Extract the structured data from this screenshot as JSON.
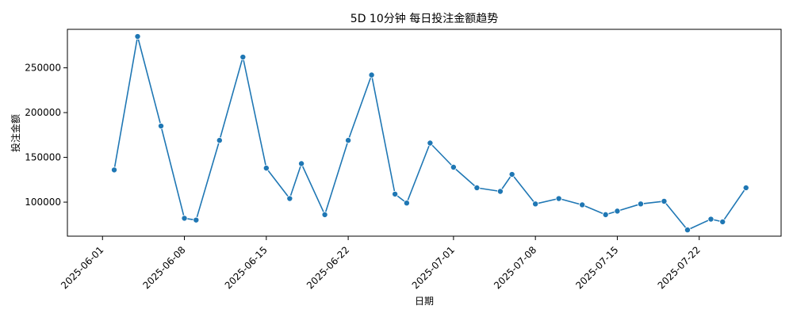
{
  "chart_data": {
    "type": "line",
    "title": "5D 10分钟 每日投注金额趋势",
    "xlabel": "日期",
    "ylabel": "投注金额",
    "xlim": [
      "2025-05-29",
      "2025-07-29"
    ],
    "ylim": [
      62000,
      293000
    ],
    "x_ticks": [
      "2025-06-01",
      "2025-06-08",
      "2025-06-15",
      "2025-06-22",
      "2025-07-01",
      "2025-07-08",
      "2025-07-15",
      "2025-07-22"
    ],
    "y_ticks": [
      100000,
      150000,
      200000,
      250000
    ],
    "grid": false,
    "legend": "none",
    "series": [
      {
        "color": "#1f77b4",
        "marker": "circle",
        "points": [
          {
            "x": "2025-06-02",
            "y": 136000
          },
          {
            "x": "2025-06-04",
            "y": 285000
          },
          {
            "x": "2025-06-06",
            "y": 185000
          },
          {
            "x": "2025-06-08",
            "y": 82000
          },
          {
            "x": "2025-06-09",
            "y": 80000
          },
          {
            "x": "2025-06-11",
            "y": 169000
          },
          {
            "x": "2025-06-13",
            "y": 262000
          },
          {
            "x": "2025-06-15",
            "y": 138000
          },
          {
            "x": "2025-06-17",
            "y": 104000
          },
          {
            "x": "2025-06-18",
            "y": 143000
          },
          {
            "x": "2025-06-20",
            "y": 86000
          },
          {
            "x": "2025-06-22",
            "y": 169000
          },
          {
            "x": "2025-06-24",
            "y": 242000
          },
          {
            "x": "2025-06-26",
            "y": 109000
          },
          {
            "x": "2025-06-27",
            "y": 99000
          },
          {
            "x": "2025-06-29",
            "y": 166000
          },
          {
            "x": "2025-07-01",
            "y": 139000
          },
          {
            "x": "2025-07-03",
            "y": 116000
          },
          {
            "x": "2025-07-05",
            "y": 112000
          },
          {
            "x": "2025-07-06",
            "y": 131000
          },
          {
            "x": "2025-07-08",
            "y": 98000
          },
          {
            "x": "2025-07-10",
            "y": 104000
          },
          {
            "x": "2025-07-12",
            "y": 97000
          },
          {
            "x": "2025-07-14",
            "y": 86000
          },
          {
            "x": "2025-07-15",
            "y": 90000
          },
          {
            "x": "2025-07-17",
            "y": 98000
          },
          {
            "x": "2025-07-19",
            "y": 101000
          },
          {
            "x": "2025-07-21",
            "y": 69000
          },
          {
            "x": "2025-07-23",
            "y": 81000
          },
          {
            "x": "2025-07-24",
            "y": 78000
          },
          {
            "x": "2025-07-26",
            "y": 116000
          }
        ]
      }
    ]
  }
}
